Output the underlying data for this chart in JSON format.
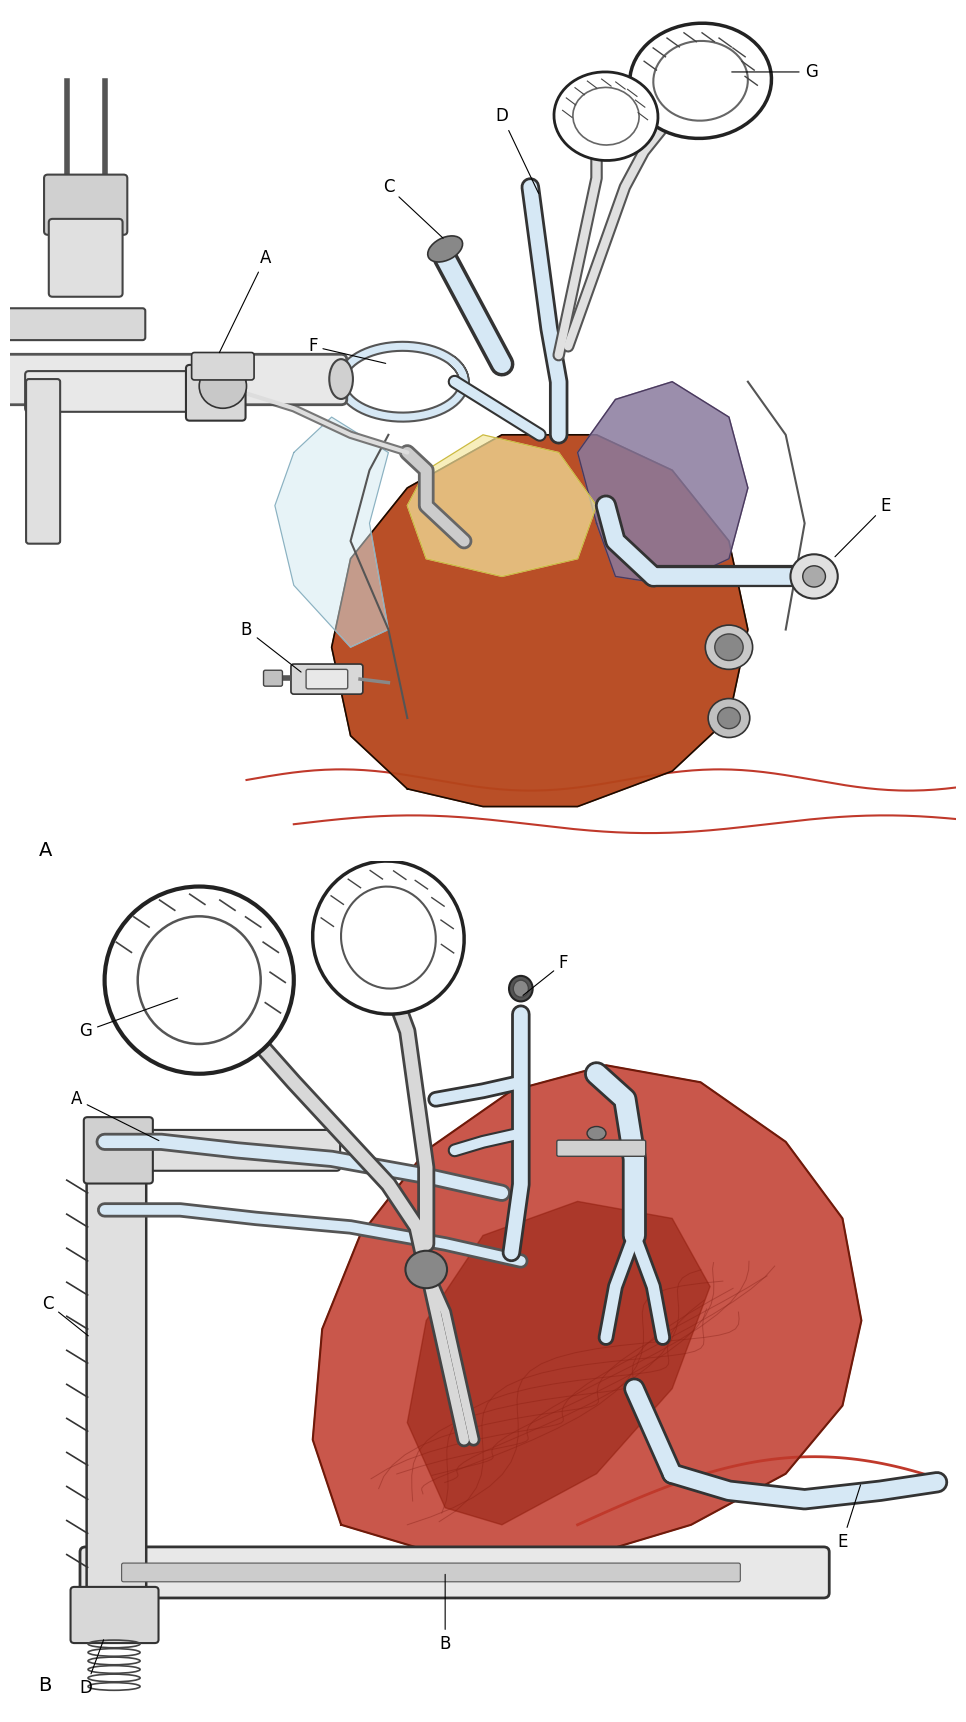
{
  "background_color": "#ffffff",
  "line_color": "#1a1a1a",
  "heart_brown": "#b5451b",
  "heart_purple": "#7b6d8d",
  "atrium_blue": "#7fb3d3",
  "skin_red": "#c0392b",
  "cannula_fill": "#d6e8f5",
  "cannula_edge": "#2c3e50",
  "retractor_fill": "#e0e0e0",
  "retractor_edge": "#333333",
  "label_fontsize": 12,
  "panel_label_fontsize": 14
}
